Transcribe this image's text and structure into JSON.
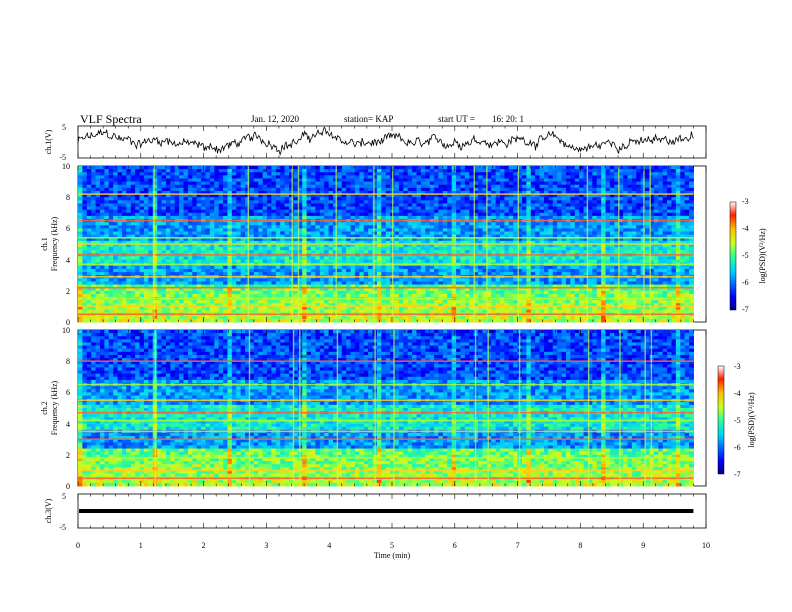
{
  "header": {
    "title": "VLF Spectra",
    "date": "Jan. 12, 2020",
    "station": "station= KAP",
    "start": "start UT =",
    "start_time": "16: 20: 1"
  },
  "chart_data": [
    {
      "type": "line",
      "panel": "ch1_waveform",
      "ylabel": "ch.1(V)",
      "ylim": [
        -5,
        5
      ],
      "yticks": [
        "5",
        "-5"
      ],
      "xlim": [
        0,
        10
      ],
      "x_end": 9.8,
      "series_color": "#000000"
    },
    {
      "type": "heatmap",
      "panel": "ch1_spectrogram",
      "ylabel_top": "ch.1",
      "ylabel": "Frequency (kHz)",
      "ylim": [
        0,
        10
      ],
      "yticks": [
        "0",
        "2",
        "4",
        "6",
        "8",
        "10"
      ],
      "xlim": [
        0,
        10
      ],
      "x_end": 9.8,
      "colorbar": {
        "label": "log(PSD)(V²/Hz)",
        "range": [
          -7,
          -3
        ],
        "ticks": [
          "-3",
          "-4",
          "-5",
          "-6",
          "-7"
        ]
      },
      "bands_khz": [
        0.5,
        1.0,
        1.5,
        2.2,
        2.9,
        3.7,
        4.3,
        5.0,
        5.4,
        6.5,
        8.2
      ]
    },
    {
      "type": "heatmap",
      "panel": "ch2_spectrogram",
      "ylabel_top": "ch.2",
      "ylabel": "Frequency (kHz)",
      "ylim": [
        0,
        10
      ],
      "yticks": [
        "0",
        "2",
        "4",
        "6",
        "8",
        "10"
      ],
      "xlim": [
        0,
        10
      ],
      "x_end": 9.8,
      "colorbar": {
        "label": "log(PSD)(V²/Hz)",
        "range": [
          -7,
          -3
        ],
        "ticks": [
          "-3",
          "-4",
          "-5",
          "-6",
          "-7"
        ]
      },
      "bands_khz": [
        0.5,
        1.0,
        1.8,
        3.0,
        3.5,
        4.2,
        4.7,
        5.5,
        6.5,
        8.0
      ]
    },
    {
      "type": "line",
      "panel": "ch3_waveform",
      "ylabel": "ch.3(V)",
      "ylim": [
        -5,
        5
      ],
      "yticks": [
        "5",
        "-5"
      ],
      "xlim": [
        0,
        10
      ],
      "value": 0,
      "series_color": "#000000"
    }
  ],
  "xaxis": {
    "label": "Time (min)",
    "ticks": [
      "0",
      "1",
      "2",
      "3",
      "4",
      "5",
      "6",
      "7",
      "8",
      "9",
      "10"
    ]
  }
}
